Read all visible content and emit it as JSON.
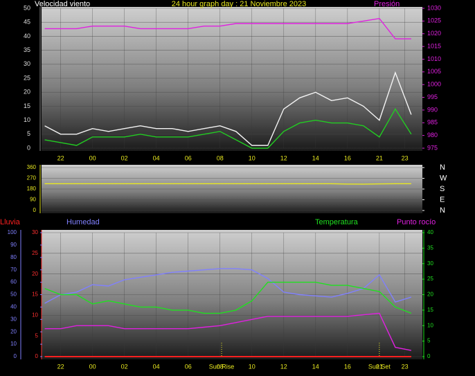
{
  "chart_data": [
    {
      "type": "line",
      "title": "24 hour graph day : 21 Noviembre 2023",
      "y_label": "Velocidad viento",
      "y2_label": "Presión",
      "x": [
        21,
        22,
        23,
        24,
        25,
        26,
        27,
        28,
        29,
        30,
        31,
        32,
        33,
        34,
        35,
        36,
        37,
        38,
        39,
        40,
        41,
        42,
        43,
        44
      ],
      "xlim": [
        20.8,
        44.7
      ],
      "xticks": [
        22,
        {
          "value": 24,
          "label": "00"
        },
        {
          "value": 26,
          "label": "02"
        },
        {
          "value": 28,
          "label": "04"
        },
        {
          "value": 30,
          "label": "06"
        },
        {
          "value": 32,
          "label": "08"
        },
        {
          "value": 34,
          "label": "10"
        },
        {
          "value": 36,
          "label": "12"
        },
        {
          "value": 38,
          "label": "14"
        },
        {
          "value": 40,
          "label": "16"
        },
        {
          "value": 42,
          "label": "21"
        },
        {
          "value": 43.6,
          "label": "23"
        }
      ],
      "ylim": [
        0,
        50
      ],
      "yticks": [
        0,
        5,
        10,
        15,
        20,
        25,
        30,
        35,
        40,
        45,
        50
      ],
      "y2lim": [
        975,
        1030
      ],
      "y2ticks": [
        975,
        980,
        985,
        990,
        995,
        1000,
        1005,
        1010,
        1015,
        1020,
        1025,
        1030
      ],
      "grid": true,
      "series": [
        {
          "color": "#f4f4f4",
          "values": [
            8,
            5,
            5,
            7,
            6,
            7,
            8,
            7,
            7,
            6,
            7,
            8,
            6,
            1,
            1,
            14,
            18,
            20,
            17,
            18,
            15,
            10,
            27,
            12
          ]
        },
        {
          "color": "#22cc22",
          "values": [
            3,
            2,
            1,
            4,
            4,
            4,
            5,
            4,
            4,
            4,
            5,
            6,
            3,
            0,
            0,
            6,
            9,
            10,
            9,
            9,
            8,
            4,
            14,
            5
          ]
        },
        {
          "color": "#e020e0",
          "axis": "y2",
          "values": [
            1022,
            1022,
            1022,
            1023,
            1023,
            1023,
            1022,
            1022,
            1022,
            1022,
            1023,
            1023,
            1024,
            1024,
            1024,
            1024,
            1024,
            1024,
            1024,
            1024,
            1025,
            1026,
            1018,
            1018
          ]
        }
      ]
    },
    {
      "type": "line",
      "x": [
        21,
        22,
        23,
        24,
        25,
        26,
        27,
        28,
        29,
        30,
        31,
        32,
        33,
        34,
        35,
        36,
        37,
        38,
        39,
        40,
        41,
        42,
        43,
        44
      ],
      "xlim": [
        20.8,
        44.7
      ],
      "ylim": [
        0,
        360
      ],
      "yticks": [
        0,
        90,
        180,
        270,
        360
      ],
      "y2lim": [
        0,
        360
      ],
      "y2ticks": [
        {
          "value": 0,
          "label": "N"
        },
        {
          "value": 90,
          "label": "E"
        },
        {
          "value": 180,
          "label": "S"
        },
        {
          "value": 270,
          "label": "W"
        },
        {
          "value": 360,
          "label": "N"
        }
      ],
      "grid": true,
      "series": [
        {
          "color": "#e8e820",
          "values": [
            225,
            225,
            225,
            225,
            225,
            225,
            225,
            225,
            225,
            225,
            225,
            225,
            225,
            225,
            225,
            225,
            225,
            225,
            225,
            222,
            221,
            223,
            225,
            225
          ]
        }
      ]
    },
    {
      "type": "line",
      "x": [
        21,
        22,
        23,
        24,
        25,
        26,
        27,
        28,
        29,
        30,
        31,
        32,
        33,
        34,
        35,
        36,
        37,
        38,
        39,
        40,
        41,
        42,
        43,
        44
      ],
      "xlim": [
        20.8,
        44.7
      ],
      "xticks": [
        22,
        {
          "value": 24,
          "label": "00"
        },
        {
          "value": 26,
          "label": "02"
        },
        {
          "value": 28,
          "label": "04"
        },
        {
          "value": 30,
          "label": "06"
        },
        {
          "value": 32,
          "label": "08"
        },
        {
          "value": 34,
          "label": "10"
        },
        {
          "value": 36,
          "label": "12"
        },
        {
          "value": 38,
          "label": "14"
        },
        {
          "value": 40,
          "label": "16"
        },
        {
          "value": 42,
          "label": "21"
        },
        {
          "value": 43.6,
          "label": "23"
        }
      ],
      "ylim": [
        0,
        30
      ],
      "yticks": [
        0,
        5,
        10,
        15,
        20,
        25,
        30
      ],
      "y3lim": [
        0,
        100
      ],
      "y3ticks": [
        0,
        10,
        20,
        30,
        40,
        50,
        60,
        70,
        80,
        90,
        100
      ],
      "y2lim": [
        0,
        40
      ],
      "y2ticks": [
        0,
        5,
        10,
        15,
        20,
        25,
        30,
        35,
        40
      ],
      "grid": true,
      "series": [
        {
          "name": "Lluvia",
          "color": "#ff2020",
          "values": [
            0,
            0,
            0,
            0,
            0,
            0,
            0,
            0,
            0,
            0,
            0,
            0,
            0,
            0,
            0,
            0,
            0,
            0,
            0,
            0,
            0,
            0,
            0,
            0
          ]
        },
        {
          "name": "Humedad",
          "color": "#8080ff",
          "axis": "y3",
          "values": [
            43,
            50,
            52,
            58,
            57,
            62,
            64,
            66,
            68,
            69,
            70,
            71,
            71,
            70,
            63,
            52,
            50,
            49,
            48,
            51,
            55,
            66,
            44,
            48
          ]
        },
        {
          "name": "Temperatura",
          "color": "#20e020",
          "axis": "y2",
          "values": [
            22,
            20,
            20,
            17,
            18,
            17,
            16,
            16,
            15,
            15,
            14,
            14,
            15,
            18,
            24,
            24,
            24,
            24,
            23,
            23,
            22,
            21,
            16,
            14
          ]
        },
        {
          "name": "Punto rocío",
          "color": "#e020e0",
          "axis": "y2",
          "values": [
            9,
            9,
            10,
            10,
            10,
            9,
            9,
            9,
            9,
            9,
            9.5,
            10,
            11,
            12,
            13,
            13,
            13,
            13,
            13,
            13,
            13.5,
            14,
            3,
            2
          ]
        }
      ],
      "annotations": [
        {
          "label": "Sun Rise",
          "x": 32.1
        },
        {
          "label": "Sun Set",
          "x": 42
        }
      ]
    }
  ]
}
